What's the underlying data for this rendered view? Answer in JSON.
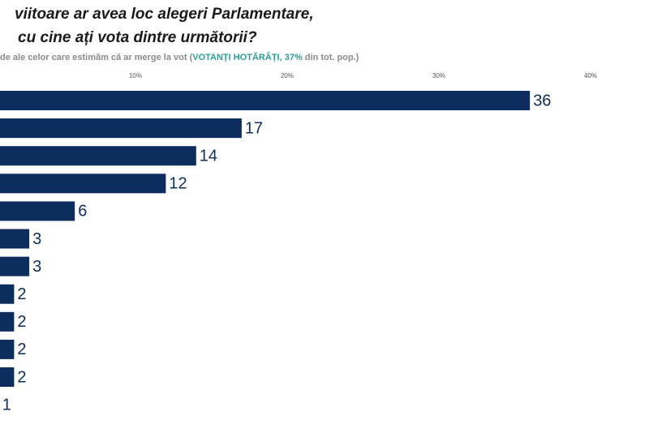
{
  "chart_data": {
    "type": "bar",
    "orientation": "horizontal",
    "title": [
      "viitoare ar avea loc alegeri Parlamentare,",
      "cu cine ați vota dintre următorii?"
    ],
    "subtitle": [
      "de ale celor care estimăm că ar merge la vot (",
      "VOTANȚI HOTĂRÂȚI, 37%",
      " din tot. pop.)"
    ],
    "subtitle_colors": [
      "#8a8a8a",
      "#2a9d9a",
      "#8a8a8a"
    ],
    "categories": [
      null,
      null,
      null,
      null,
      null,
      null,
      null,
      null,
      null,
      null,
      null,
      null
    ],
    "values": [
      36,
      17,
      14,
      12,
      6,
      3,
      3,
      2,
      2,
      2,
      2,
      1
    ],
    "color": "#0d2d5e",
    "xlim": [
      0,
      40
    ],
    "xticks": [
      {
        "value": 10,
        "label": "10%"
      },
      {
        "value": 20,
        "label": "20%"
      },
      {
        "value": 30,
        "label": "30%"
      },
      {
        "value": 40,
        "label": "40%"
      }
    ],
    "grid": false
  }
}
